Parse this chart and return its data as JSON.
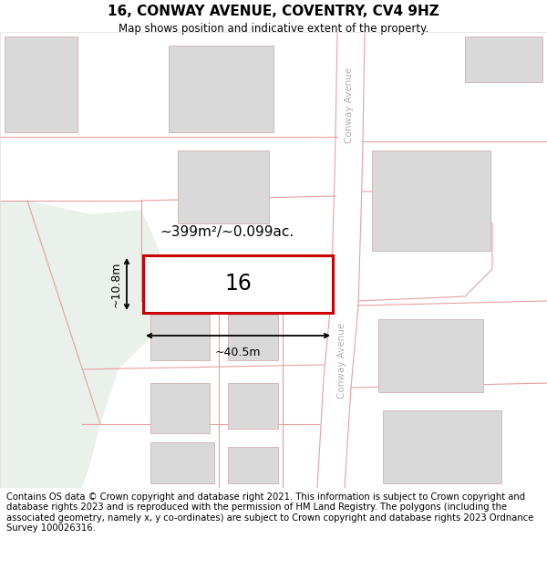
{
  "title": "16, CONWAY AVENUE, COVENTRY, CV4 9HZ",
  "subtitle": "Map shows position and indicative extent of the property.",
  "footer": "Contains OS data © Crown copyright and database right 2021. This information is subject to Crown copyright and database rights 2023 and is reproduced with the permission of HM Land Registry. The polygons (including the associated geometry, namely x, y co-ordinates) are subject to Crown copyright and database rights 2023 Ordnance Survey 100026316.",
  "map_bg": "#f7f7f5",
  "green_area_color": "#eaf0ea",
  "plot_outline_color": "#cc0000",
  "plot_fill_color": "#ffffff",
  "road_line_color": "#e8a0a0",
  "building_fill": "#d9d9d9",
  "building_outline": "#d0b0b0",
  "street_text_color": "#b0b0b0",
  "area_label": "~399m²/~0.099ac.",
  "width_label": "~40.5m",
  "height_label": "~10.8m",
  "plot_number": "16",
  "title_fontsize": 11,
  "subtitle_fontsize": 9,
  "footer_fontsize": 7.2
}
